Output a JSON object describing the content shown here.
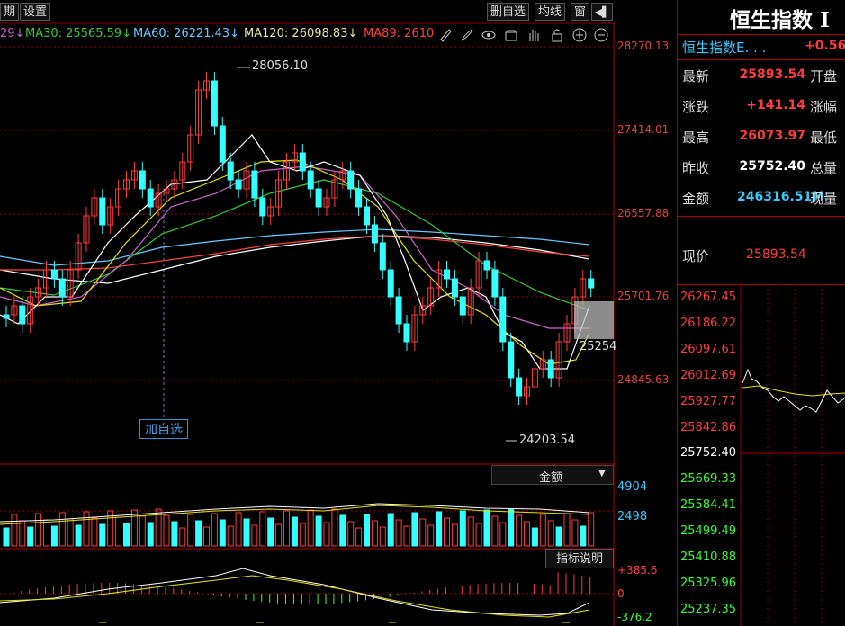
{
  "toolbar": {
    "period_fragment": "期",
    "settings_label": "设置",
    "delete_watch_label": "删自选",
    "ma_line_label": "均线",
    "window_label": "窗",
    "side_toggle_glyph": "◀▌"
  },
  "ma_row": {
    "prefix": "29↓",
    "ma30": "MA30: 25565.59↓",
    "ma60": "MA60: 26221.43↓",
    "ma120": "MA120: 26098.83↓",
    "ma89": "MA89: 2610",
    "icons": [
      "pencil-icon",
      "brush-icon",
      "eye-icon",
      "lock-box-icon",
      "hand-icon",
      "padlock-icon",
      "zoom-in-icon",
      "zoom-out-icon"
    ]
  },
  "price_axis": [
    "28270.13",
    "27414.01",
    "26557.88",
    "25701.76",
    "24845.63"
  ],
  "annotations": {
    "high": "28056.10",
    "low": "24203.54",
    "cursor_price": "25254",
    "add_watch_label": "加自选"
  },
  "volume_panel": {
    "dropdown_label": "金额",
    "dropdown_arrow": "▼",
    "ticks": [
      "4904",
      "2498"
    ]
  },
  "indicator_panel": {
    "explain_label": "指标说明",
    "ticks": [
      "+385.6",
      "0",
      "-376.2"
    ]
  },
  "quote": {
    "title": "恒生指数 I",
    "subtitle": "恒生指数E. . .",
    "subtitle_change": "+0.56",
    "rows": [
      {
        "label": "最新",
        "value": "25893.54",
        "label2": "开盘",
        "color": "#ff3b3b"
      },
      {
        "label": "涨跌",
        "value": "+141.14",
        "label2": "涨幅",
        "color": "#ff3b3b"
      },
      {
        "label": "最高",
        "value": "26073.97",
        "label2": "最低",
        "color": "#ff3b3b"
      },
      {
        "label": "昨收",
        "value": "25752.40",
        "label2": "总量",
        "color": "#ffffff"
      },
      {
        "label": "金额",
        "value": "246316.51M",
        "label2": "现量",
        "color": "#33ccff"
      }
    ],
    "current_label": "现价",
    "current_value": "25893.54"
  },
  "intraday_axis": {
    "upper": [
      "26267.45",
      "26186.22",
      "26097.61",
      "26012.69",
      "25927.77",
      "25842.86"
    ],
    "mid": "25752.40",
    "lower": [
      "25669.33",
      "25584.41",
      "25499.49",
      "25410.88",
      "25325.96",
      "25237.35"
    ]
  },
  "colors": {
    "up": "#ff3b3b",
    "down": "#33ffff",
    "grid": "#8b0000",
    "ma_yellow": "#e6e600",
    "ma_green": "#33cc33",
    "ma_pink": "#cc66cc",
    "ma_white": "#ffffff",
    "ma_cyan": "#66ccff"
  }
}
